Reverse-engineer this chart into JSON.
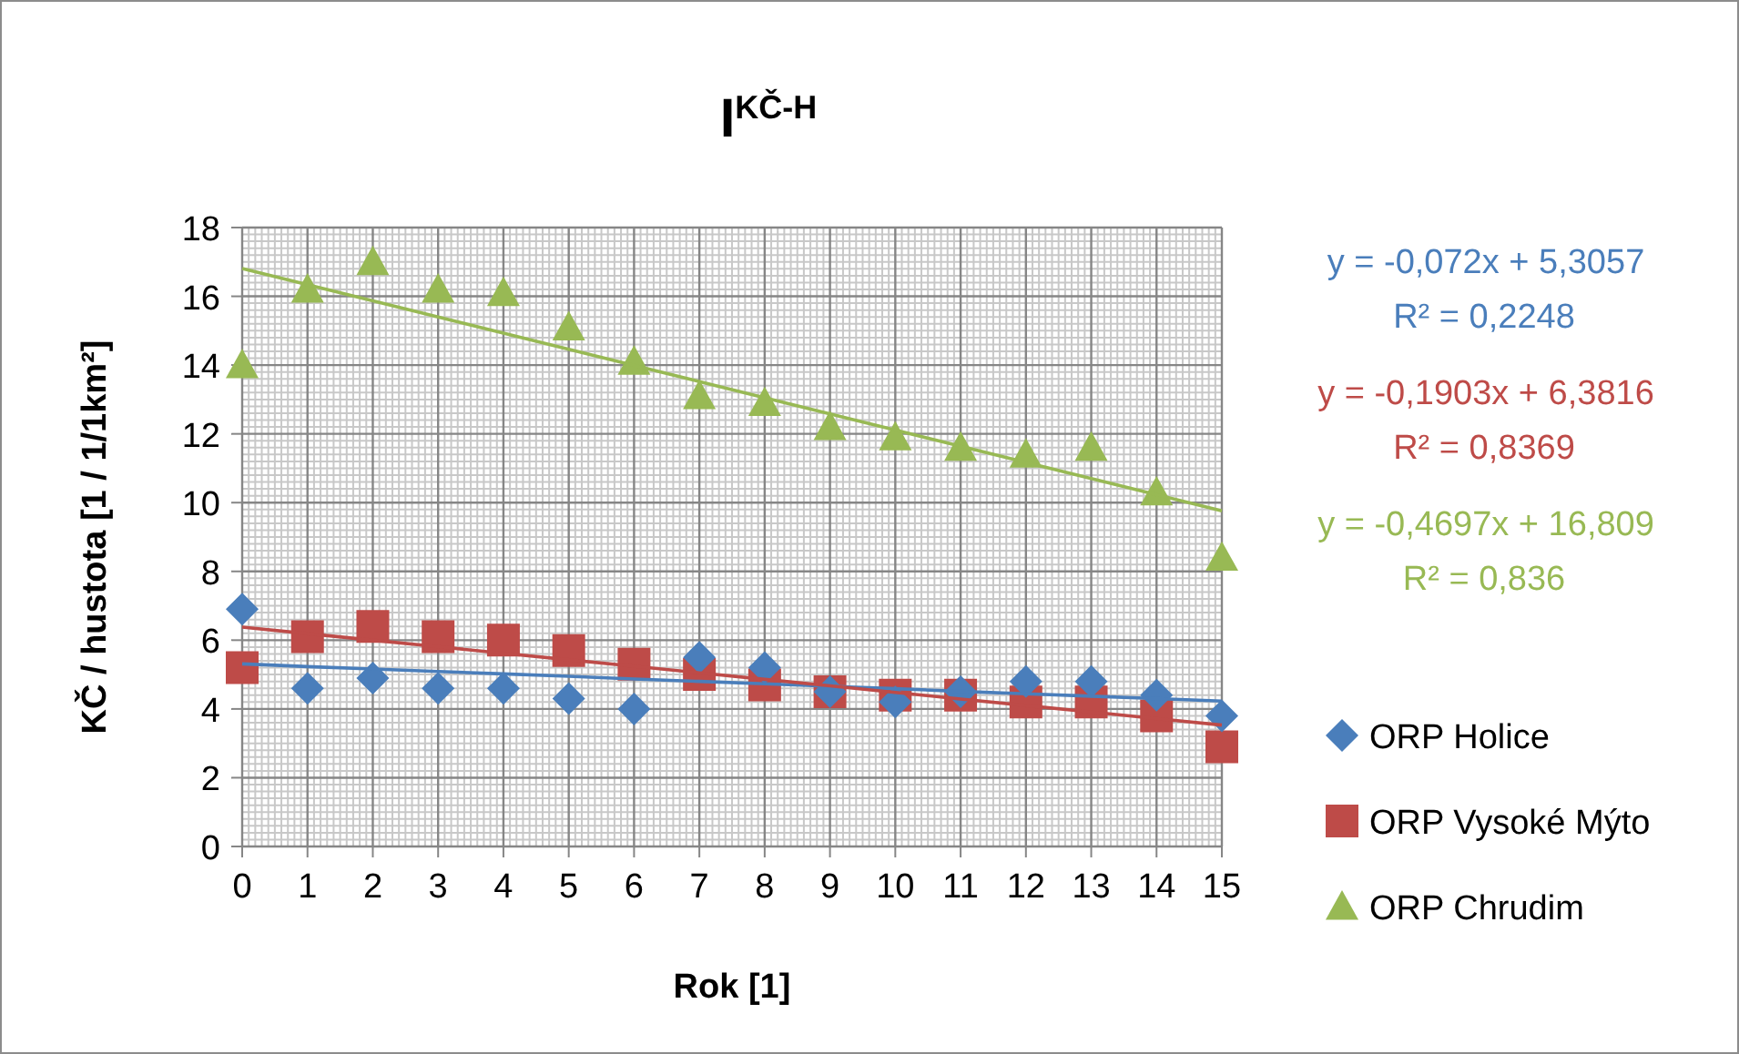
{
  "chart_data": {
    "type": "scatter",
    "title": "I$^{KČ-H}$",
    "xlabel": "Rok [1]",
    "ylabel": "KČ / hustota [1 / 1/1km²]",
    "x": [
      0,
      1,
      2,
      3,
      4,
      5,
      6,
      7,
      8,
      9,
      10,
      11,
      12,
      13,
      14,
      15
    ],
    "series": [
      {
        "name": "ORP Holice",
        "color": "#4a7ebb",
        "marker": "diamond",
        "values": [
          6.9,
          4.6,
          4.9,
          4.6,
          4.6,
          4.3,
          4.0,
          5.5,
          5.2,
          4.5,
          4.2,
          4.5,
          4.8,
          4.8,
          4.4,
          3.8
        ]
      },
      {
        "name": "ORP Vysoké Mýto",
        "color": "#be4b48",
        "marker": "square",
        "values": [
          5.2,
          6.1,
          6.4,
          6.1,
          6.0,
          5.7,
          5.3,
          5.0,
          4.7,
          4.5,
          4.4,
          4.4,
          4.2,
          4.2,
          3.8,
          2.9
        ]
      },
      {
        "name": "ORP Chrudim",
        "color": "#98b954",
        "marker": "triangle",
        "values": [
          14.0,
          16.2,
          17.0,
          16.2,
          16.1,
          15.1,
          14.1,
          13.1,
          12.9,
          12.2,
          11.9,
          11.6,
          11.4,
          11.6,
          10.3,
          8.4
        ]
      },
      {
        "type": "line",
        "color": "#4a7ebb",
        "values": [
          5.31,
          5.23,
          5.16,
          5.09,
          5.02,
          4.95,
          4.87,
          4.8,
          4.73,
          4.66,
          4.59,
          4.51,
          4.44,
          4.37,
          4.3,
          4.23
        ]
      },
      {
        "type": "line",
        "color": "#be4b48",
        "values": [
          6.38,
          6.19,
          6.0,
          5.81,
          5.62,
          5.43,
          5.24,
          5.05,
          4.86,
          4.67,
          4.48,
          4.29,
          4.1,
          3.91,
          3.72,
          3.53
        ]
      },
      {
        "type": "line",
        "color": "#98b954",
        "values": [
          16.81,
          16.34,
          15.87,
          15.4,
          14.93,
          14.46,
          13.99,
          13.52,
          13.05,
          12.58,
          12.11,
          11.64,
          11.17,
          10.7,
          10.23,
          9.76
        ]
      }
    ],
    "annotations": [
      "y = -0,072x + 5,3057",
      "R² = 0,2248",
      "y = -0,1903x + 6,3816",
      "R² = 0,8369",
      "y = -0,4697x + 16,809",
      "R² = 0,836"
    ],
    "xlim": [
      0,
      15
    ],
    "xticks": [
      0,
      1,
      2,
      3,
      4,
      5,
      6,
      7,
      8,
      9,
      10,
      11,
      12,
      13,
      14,
      15
    ],
    "ylim": [
      0,
      18
    ],
    "yticks": [
      0,
      2,
      4,
      6,
      8,
      10,
      12,
      14,
      16,
      18
    ],
    "grid": true,
    "legend": "right"
  }
}
